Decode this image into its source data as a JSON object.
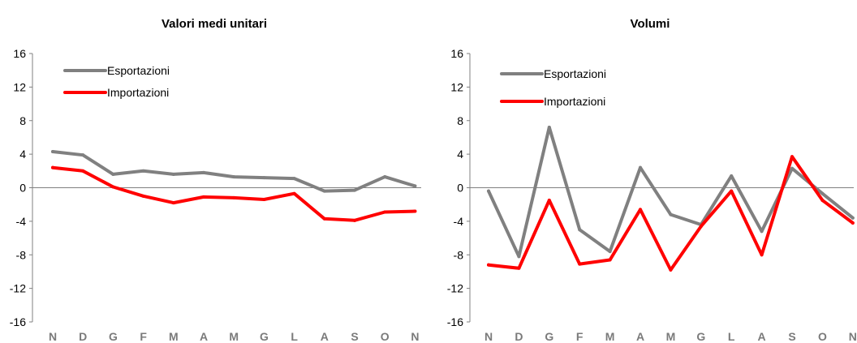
{
  "chart_data": [
    {
      "type": "line",
      "title": "Valori medi unitari",
      "xlabel": "",
      "ylabel": "",
      "categories": [
        "N",
        "D",
        "G",
        "F",
        "M",
        "A",
        "M",
        "G",
        "L",
        "A",
        "S",
        "O",
        "N"
      ],
      "ylim": [
        -16,
        16
      ],
      "yticks": [
        16,
        12,
        8,
        4,
        0,
        -4,
        -8,
        -12,
        -16
      ],
      "grid": false,
      "legend": "top-left",
      "series": [
        {
          "name": "Esportazioni",
          "color": "#808080",
          "values": [
            4.3,
            3.9,
            1.6,
            2.0,
            1.6,
            1.8,
            1.3,
            1.2,
            1.1,
            -0.4,
            -0.3,
            1.3,
            0.2
          ]
        },
        {
          "name": "Importazioni",
          "color": "#ff0000",
          "values": [
            2.4,
            2.0,
            0.1,
            -1.0,
            -1.8,
            -1.1,
            -1.2,
            -1.4,
            -0.7,
            -3.7,
            -3.9,
            -2.9,
            -2.8
          ]
        }
      ]
    },
    {
      "type": "line",
      "title": "Volumi",
      "xlabel": "",
      "ylabel": "",
      "categories": [
        "N",
        "D",
        "G",
        "F",
        "M",
        "A",
        "M",
        "G",
        "L",
        "A",
        "S",
        "O",
        "N"
      ],
      "ylim": [
        -16,
        16
      ],
      "yticks": [
        16,
        12,
        8,
        4,
        0,
        -4,
        -8,
        -12,
        -16
      ],
      "grid": false,
      "legend": "top-left",
      "series": [
        {
          "name": "Esportazioni",
          "color": "#808080",
          "values": [
            -0.4,
            -8.2,
            7.2,
            -5.0,
            -7.6,
            2.4,
            -3.2,
            -4.4,
            1.4,
            -5.2,
            2.3,
            -0.7,
            -3.6
          ]
        },
        {
          "name": "Importazioni",
          "color": "#ff0000",
          "values": [
            -9.2,
            -9.6,
            -1.5,
            -9.1,
            -8.6,
            -2.6,
            -9.8,
            -4.6,
            -0.4,
            -8.0,
            3.7,
            -1.5,
            -4.2
          ]
        }
      ]
    }
  ]
}
